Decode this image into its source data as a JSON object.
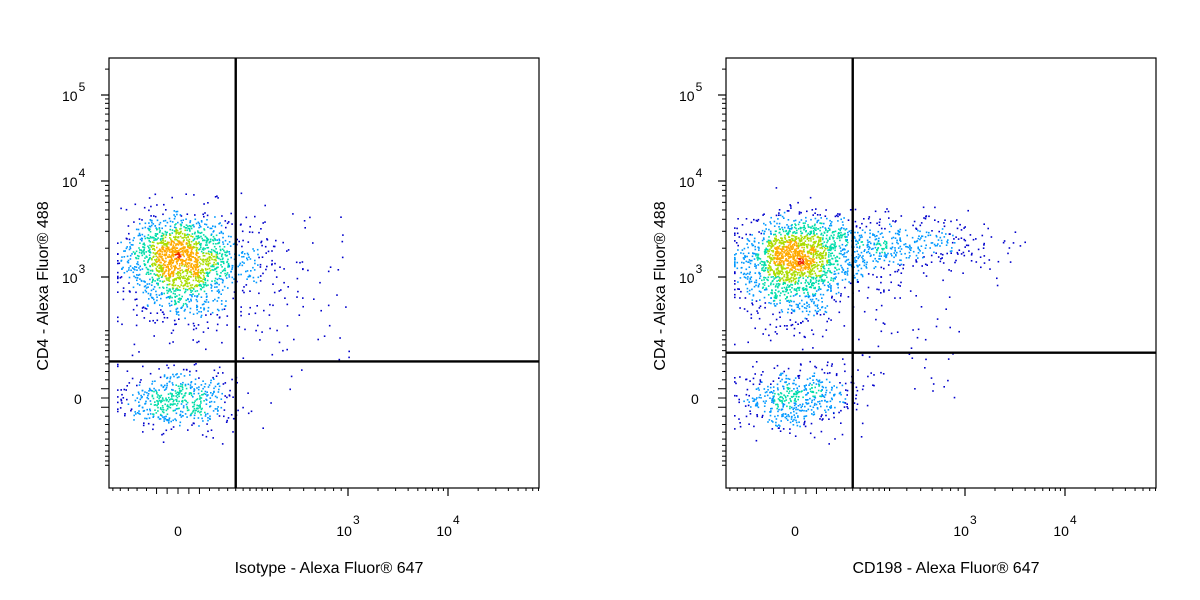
{
  "chart_data": [
    {
      "type": "scatter",
      "subtype": "flow-cytometry-density-dot-plot",
      "xlabel": "Isotype - Alexa Fluor® 647",
      "ylabel": "CD4 - Alexa Fluor® 488",
      "x_scale": "biexponential",
      "y_scale": "biexponential",
      "x_ticks": [
        {
          "label": "0",
          "power": ""
        },
        {
          "label": "10",
          "power": "3"
        },
        {
          "label": "10",
          "power": "4"
        }
      ],
      "y_ticks": [
        {
          "label": "0",
          "power": ""
        },
        {
          "label": "10",
          "power": "3"
        },
        {
          "label": "10",
          "power": "4"
        },
        {
          "label": "10",
          "power": "5"
        }
      ],
      "grid": false,
      "density_colormap": [
        "#0000cc",
        "#0099ff",
        "#00ddaa",
        "#aadd00",
        "#ffaa00",
        "#ee2200"
      ],
      "quadrant_gate": {
        "x": 150,
        "y": 130
      },
      "populations": [
        {
          "name": "",
          "x_center": 0,
          "y_center": 1700,
          "count": 1800
        },
        {
          "name": "",
          "x_center": 0,
          "y_center": 0,
          "count": 500
        }
      ]
    },
    {
      "type": "scatter",
      "subtype": "flow-cytometry-density-dot-plot",
      "xlabel": "CD198 - Alexa Fluor® 647",
      "ylabel": "CD4 - Alexa Fluor® 488",
      "x_scale": "biexponential",
      "y_scale": "biexponential",
      "x_ticks": [
        {
          "label": "0",
          "power": ""
        },
        {
          "label": "10",
          "power": "3"
        },
        {
          "label": "10",
          "power": "4"
        }
      ],
      "y_ticks": [
        {
          "label": "0",
          "power": ""
        },
        {
          "label": "10",
          "power": "3"
        },
        {
          "label": "10",
          "power": "4"
        },
        {
          "label": "10",
          "power": "5"
        }
      ],
      "grid": false,
      "density_colormap": [
        "#0000cc",
        "#0099ff",
        "#00ddaa",
        "#aadd00",
        "#ffaa00",
        "#ee2200"
      ],
      "quadrant_gate": {
        "x": 150,
        "y": 170
      },
      "populations": [
        {
          "name": "",
          "x_center": 0,
          "y_center": 1650,
          "count": 1800
        },
        {
          "name": "",
          "x_center": 300,
          "y_center": 2200,
          "count": 450
        },
        {
          "name": "",
          "x_center": 0,
          "y_center": 0,
          "count": 500
        }
      ]
    }
  ]
}
